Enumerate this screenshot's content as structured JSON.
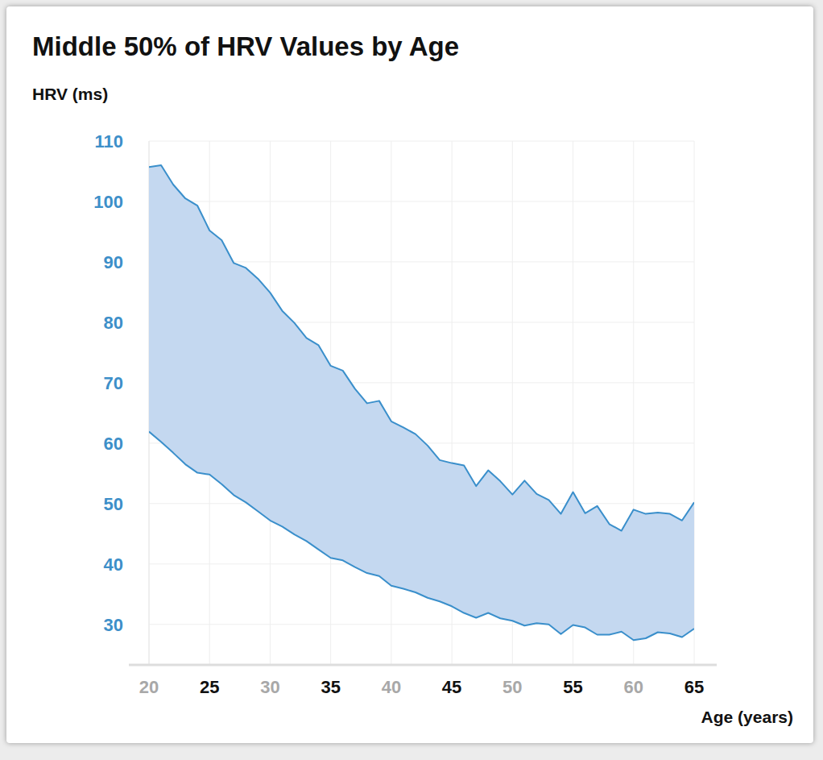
{
  "chart_data": {
    "type": "area",
    "title": "Middle 50% of HRV Values by Age",
    "y_label": "HRV (ms)",
    "x_label": "Age (years)",
    "x": [
      20,
      21,
      22,
      23,
      24,
      25,
      26,
      27,
      28,
      29,
      30,
      31,
      32,
      33,
      34,
      35,
      36,
      37,
      38,
      39,
      40,
      41,
      42,
      43,
      44,
      45,
      46,
      47,
      48,
      49,
      50,
      51,
      52,
      53,
      54,
      55,
      56,
      57,
      58,
      59,
      60,
      61,
      62,
      63,
      64,
      65
    ],
    "series": [
      {
        "color": "#3a8fcb",
        "values": [
          61.9,
          60.2,
          58.4,
          56.5,
          55.1,
          54.8,
          53.2,
          51.4,
          50.2,
          48.7,
          47.2,
          46.2,
          44.9,
          43.8,
          42.4,
          41.0,
          40.6,
          39.5,
          38.5,
          38.0,
          36.4,
          35.9,
          35.3,
          34.4,
          33.8,
          33.0,
          31.9,
          31.1,
          31.9,
          31.0,
          30.6,
          29.8,
          30.2,
          30.0,
          28.4,
          29.9,
          29.5,
          28.3,
          28.3,
          28.8,
          27.4,
          27.7,
          28.7,
          28.5,
          27.9,
          29.3
        ]
      },
      {
        "color": "#3a8fcb",
        "values": [
          105.7,
          106.0,
          102.8,
          100.5,
          99.3,
          95.2,
          93.6,
          89.8,
          89.0,
          87.2,
          84.9,
          81.9,
          79.9,
          77.4,
          76.2,
          72.8,
          72.0,
          69.0,
          66.6,
          67.0,
          63.6,
          62.6,
          61.5,
          59.6,
          57.2,
          56.7,
          56.3,
          52.9,
          55.5,
          53.7,
          51.5,
          53.8,
          51.6,
          50.6,
          48.3,
          51.9,
          48.4,
          49.6,
          46.6,
          45.5,
          49.0,
          48.3,
          48.5,
          48.3,
          47.2,
          50.2
        ]
      }
    ],
    "xlim": [
      20,
      65
    ],
    "xticks": [
      20,
      25,
      30,
      35,
      40,
      45,
      50,
      55,
      60,
      65
    ],
    "ylim": [
      23.3,
      110
    ],
    "yticks": [
      30,
      40,
      50,
      60,
      70,
      80,
      90,
      100,
      110
    ],
    "grid": true
  }
}
